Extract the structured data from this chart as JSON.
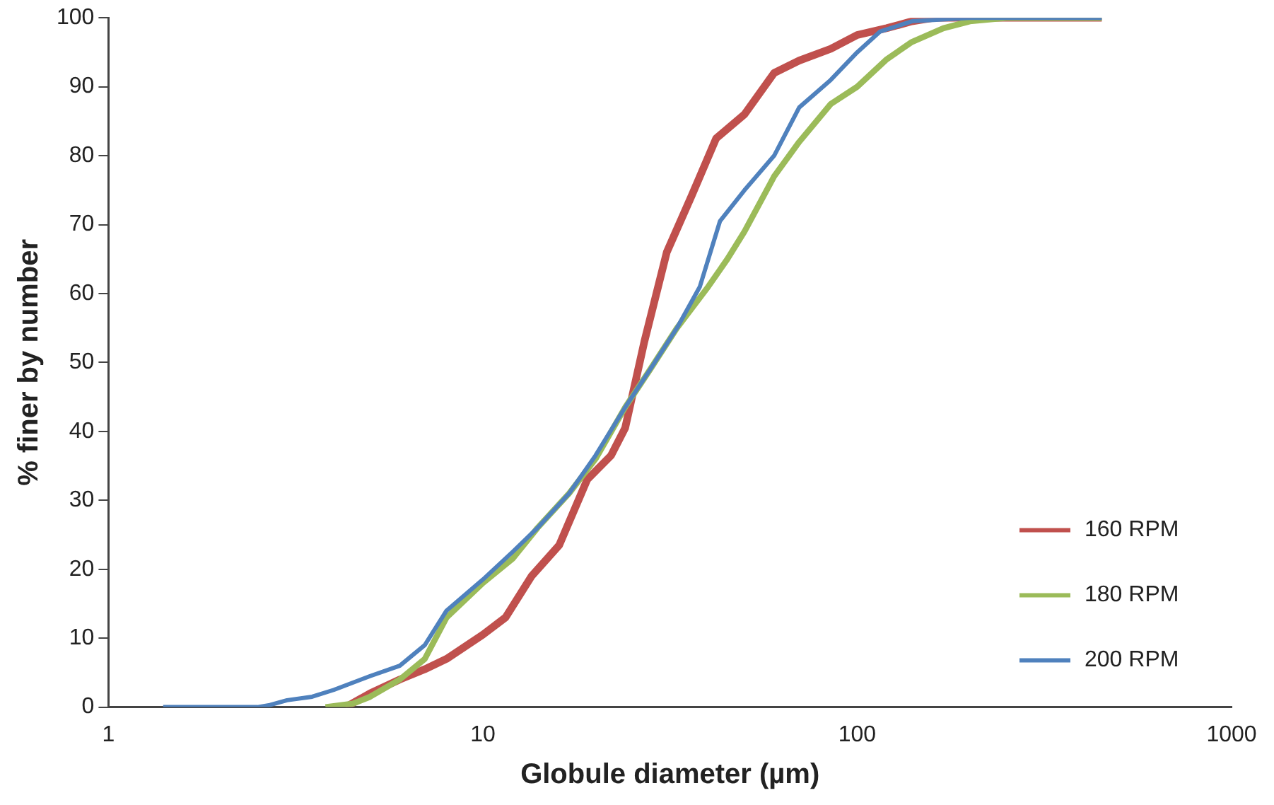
{
  "chart_data": {
    "type": "line",
    "xlabel": "Globule diameter (µm)",
    "ylabel": "% finer by number",
    "log": "x",
    "xlim": [
      1,
      1000
    ],
    "xticks": [
      1,
      10,
      100,
      1000
    ],
    "ylim": [
      0,
      100
    ],
    "yticks": [
      0,
      10,
      20,
      30,
      40,
      50,
      60,
      70,
      80,
      90,
      100
    ],
    "grid": false,
    "legend": "bottom right",
    "marker": "none",
    "line_style": "solid",
    "series": [
      {
        "name": "160 RPM",
        "color": "#c0504d",
        "x": [
          4.3,
          5,
          6,
          7,
          8,
          10,
          11.5,
          13.5,
          16,
          19,
          22,
          24,
          27,
          31,
          36,
          42,
          50,
          60,
          70,
          85,
          100,
          120,
          140,
          160,
          200,
          450
        ],
        "values": [
          0,
          2,
          4,
          5.5,
          7,
          10.5,
          13,
          19,
          23.5,
          33,
          36.5,
          40.5,
          53,
          66,
          74,
          82.5,
          86,
          92,
          93.8,
          95.5,
          97.5,
          98.5,
          99.5,
          100,
          100,
          100
        ]
      },
      {
        "name": "180 RPM",
        "color": "#9bbb59",
        "x": [
          3.8,
          4.5,
          5,
          6,
          7,
          8,
          10,
          12,
          14,
          17,
          20,
          24,
          28,
          33,
          40,
          45,
          50,
          60,
          70,
          85,
          100,
          120,
          140,
          170,
          200,
          250,
          450
        ],
        "values": [
          0,
          0.5,
          1.5,
          4,
          7,
          13,
          18,
          21.5,
          26,
          31,
          36,
          43.5,
          49,
          55,
          61,
          65,
          69,
          77,
          82,
          87.5,
          90,
          94,
          96.5,
          98.5,
          99.5,
          100,
          100
        ]
      },
      {
        "name": "200 RPM",
        "color": "#4f81bd",
        "x": [
          1.4,
          2.5,
          2.7,
          3,
          3.5,
          4,
          5,
          6,
          7,
          8,
          10,
          12,
          14,
          17,
          20,
          24,
          28,
          33,
          38,
          43,
          50,
          60,
          70,
          85,
          100,
          115,
          140,
          200,
          450
        ],
        "values": [
          0,
          0,
          0.3,
          1,
          1.5,
          2.5,
          4.5,
          6,
          9,
          14,
          18.5,
          22.5,
          26,
          31,
          36.5,
          43.5,
          49,
          55,
          61,
          70.5,
          75,
          80,
          87,
          91,
          95,
          98,
          99.5,
          100,
          100
        ]
      }
    ]
  }
}
